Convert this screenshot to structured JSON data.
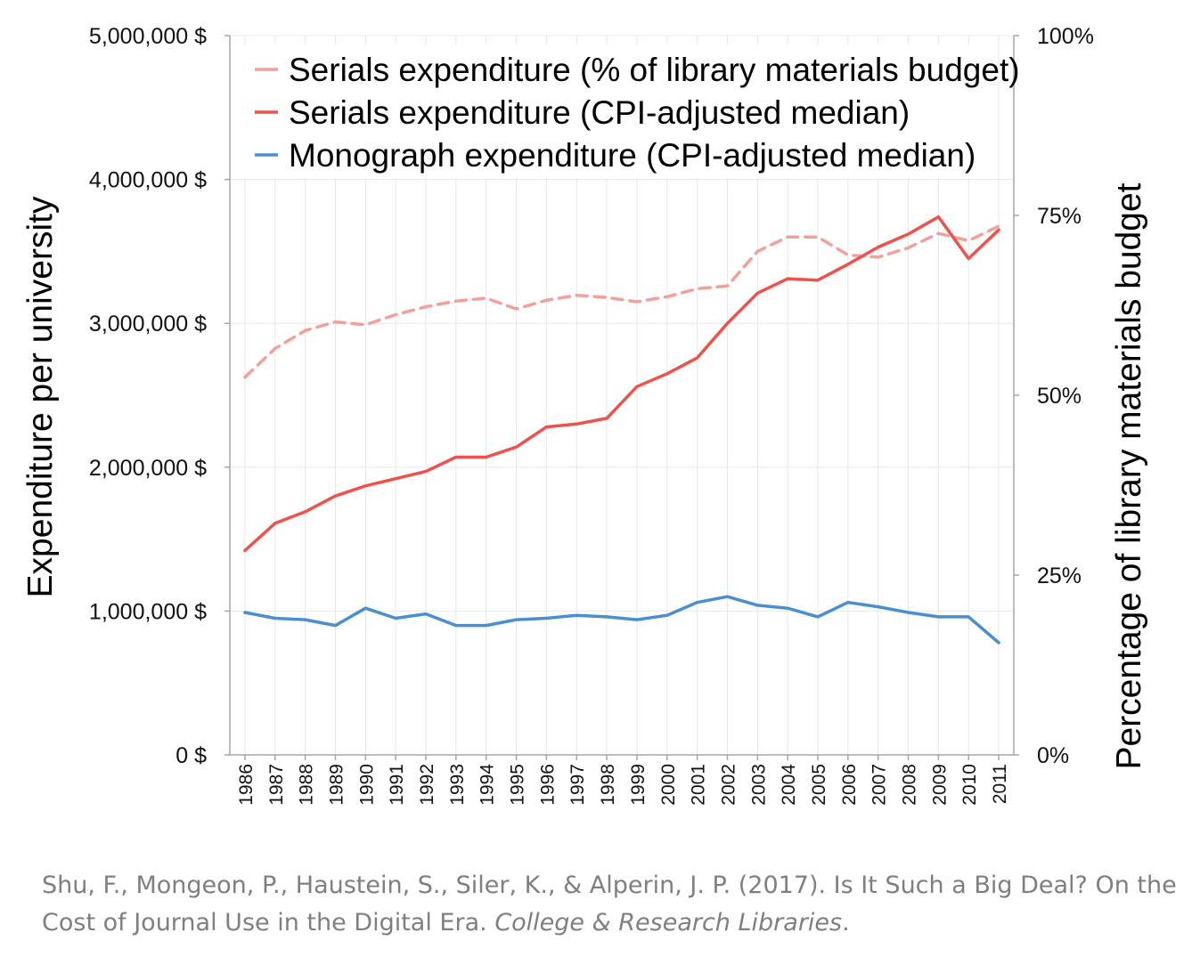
{
  "chart_data": {
    "type": "line",
    "x": [
      "1986",
      "1987",
      "1988",
      "1989",
      "1990",
      "1991",
      "1992",
      "1993",
      "1994",
      "1995",
      "1996",
      "1997",
      "1998",
      "1999",
      "2000",
      "2001",
      "2002",
      "2003",
      "2004",
      "2005",
      "2006",
      "2007",
      "2008",
      "2009",
      "2010",
      "2011"
    ],
    "ylabel": "Expenditure per university",
    "y2label": "Percentage of library materials budget",
    "ylim": [
      0,
      5000000
    ],
    "y2lim": [
      0,
      100
    ],
    "yticks": [
      "0 $",
      "1,000,000 $",
      "2,000,000 $",
      "3,000,000 $",
      "4,000,000 $",
      "5,000,000 $"
    ],
    "y2ticks": [
      "0%",
      "25%",
      "50%",
      "75%",
      "100%"
    ],
    "grid": true,
    "legend_position": "top",
    "series": [
      {
        "name": "Serials expenditure (% of library materials budget)",
        "axis": "right",
        "style": "dashed",
        "color": "#f4a09a",
        "values": [
          52.5,
          56.5,
          59,
          60.2,
          59.8,
          61.2,
          62.3,
          63.1,
          63.5,
          62,
          63.2,
          63.9,
          63.6,
          63,
          63.7,
          64.8,
          65.2,
          70,
          72,
          72,
          69.5,
          69.2,
          70.5,
          72.5,
          71.5,
          73.5
        ]
      },
      {
        "name": "Serials expenditure (CPI-adjusted median)",
        "axis": "left",
        "style": "solid",
        "color": "#f0514c",
        "values": [
          1420000,
          1610000,
          1690000,
          1800000,
          1870000,
          1920000,
          1970000,
          2070000,
          2070000,
          2140000,
          2280000,
          2300000,
          2340000,
          2560000,
          2650000,
          2760000,
          3000000,
          3210000,
          3310000,
          3300000,
          3410000,
          3530000,
          3620000,
          3740000,
          3450000,
          3650000
        ]
      },
      {
        "name": "Monograph expenditure (CPI-adjusted median)",
        "axis": "left",
        "style": "solid",
        "color": "#4a8fd0",
        "values": [
          990000,
          950000,
          940000,
          900000,
          1020000,
          950000,
          980000,
          900000,
          900000,
          940000,
          950000,
          970000,
          960000,
          940000,
          970000,
          1060000,
          1100000,
          1040000,
          1020000,
          960000,
          1060000,
          1030000,
          990000,
          960000,
          960000,
          780000
        ]
      }
    ]
  },
  "citation": {
    "text": "Shu, F., Mongeon, P., Haustein, S., Siler, K., & Alperin, J. P. (2017). Is It Such a Big Deal? On the Cost of Journal Use in the Digital Era. ",
    "journal": "College & Research Libraries",
    "end": "."
  }
}
